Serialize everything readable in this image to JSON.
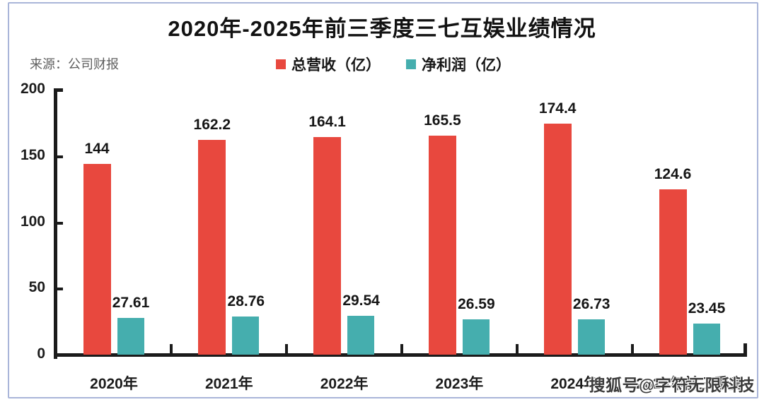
{
  "title": "2020年-2025年前三季度三七互娱业绩情况",
  "source": "来源：公司财报",
  "legend": [
    {
      "label": "总营收（亿）",
      "color": "#e8483e"
    },
    {
      "label": "净利润（亿）",
      "color": "#45aeae"
    }
  ],
  "watermark": "搜狐号@字符无限科技",
  "colors": {
    "revenue": "#e8483e",
    "profit": "#45aeae",
    "axis": "#1b1b1b",
    "frame_border": "#a9b5d9",
    "background": "#ffffff"
  },
  "chart_data": {
    "type": "bar",
    "title": "2020年-2025年前三季度三七互娱业绩情况",
    "source": "来源：公司财报",
    "categories": [
      "2020年",
      "2021年",
      "2022年",
      "2023年",
      "2024年",
      "2025年前三季度"
    ],
    "series": [
      {
        "name": "总营收（亿）",
        "color": "#e8483e",
        "values": [
          144,
          162.2,
          164.1,
          165.5,
          174.4,
          124.6
        ]
      },
      {
        "name": "净利润（亿）",
        "color": "#45aeae",
        "values": [
          27.61,
          28.76,
          29.54,
          26.59,
          26.73,
          23.45
        ]
      }
    ],
    "xlabel": "",
    "ylabel": "",
    "ylim": [
      0,
      200
    ],
    "yticks": [
      0,
      50,
      100,
      150,
      200
    ],
    "grid": false,
    "legend_position": "top-center",
    "value_labels": true
  }
}
